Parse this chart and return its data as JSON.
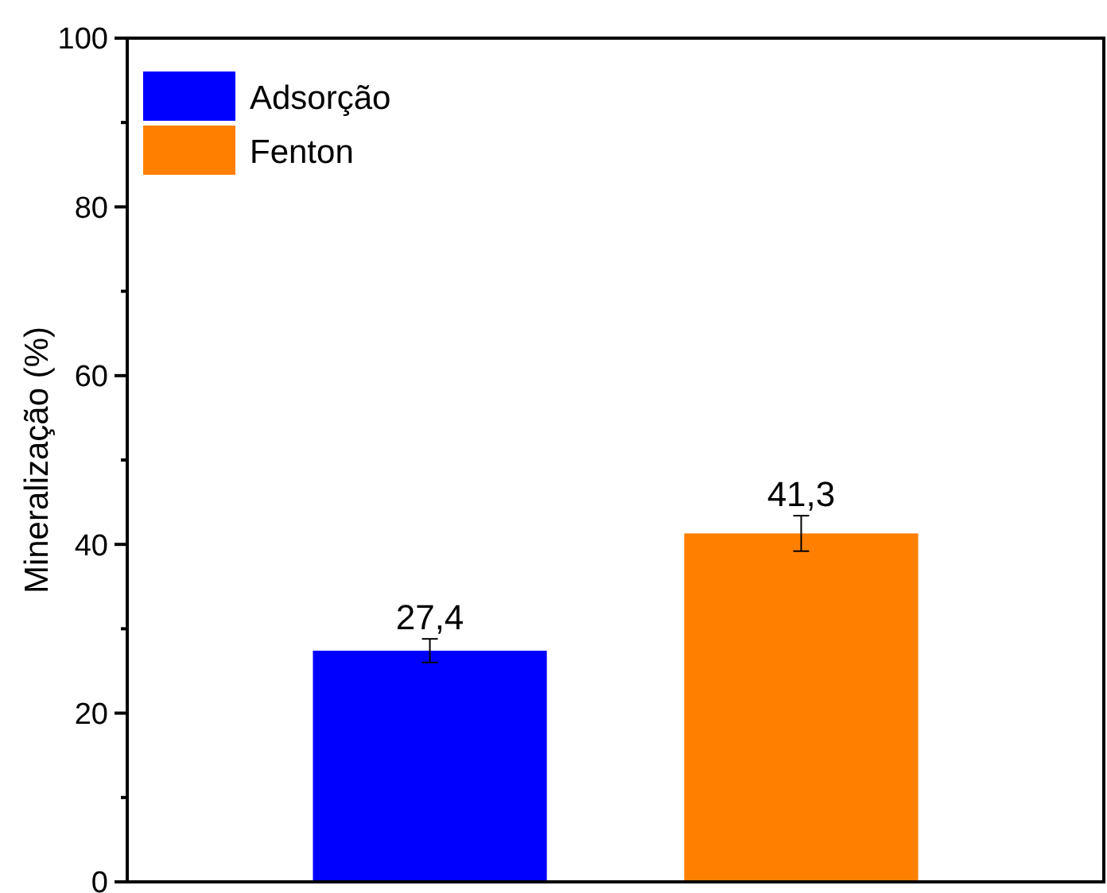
{
  "chart_data": {
    "type": "bar",
    "ylabel": "Mineralização (%)",
    "categories": [
      null,
      null
    ],
    "series": [
      {
        "name": "Adsorção",
        "color": "#0000ff",
        "values": [
          27.4,
          null
        ],
        "errors": [
          1.4,
          null
        ],
        "value_labels": [
          "27,4",
          null
        ]
      },
      {
        "name": "Fenton",
        "color": "#ff8000",
        "values": [
          null,
          41.3
        ],
        "errors": [
          null,
          2.1
        ],
        "value_labels": [
          null,
          "41,3"
        ]
      }
    ],
    "ylim": [
      0,
      100
    ],
    "yticks": [
      0,
      {
        "value": 10,
        "label": null
      },
      20,
      {
        "value": 30,
        "label": null
      },
      40,
      {
        "value": 50,
        "label": null
      },
      60,
      {
        "value": 70,
        "label": null
      },
      80,
      {
        "value": 90,
        "label": null
      },
      100
    ],
    "grid": false,
    "legend": "top left"
  }
}
